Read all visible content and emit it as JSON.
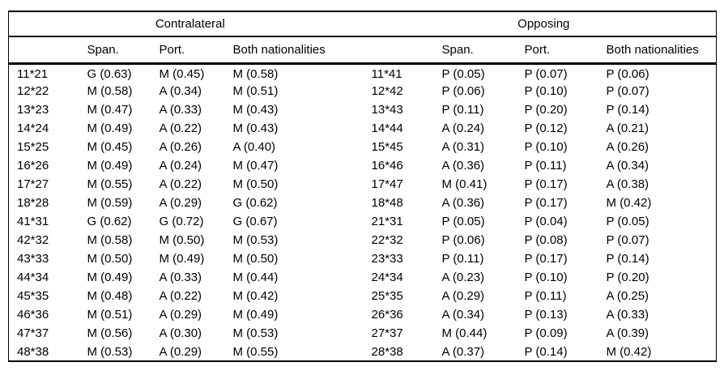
{
  "table": {
    "groups": [
      {
        "label": "Contralateral"
      },
      {
        "label": "Opposing"
      }
    ],
    "col_headers": [
      "",
      "Span.",
      "Port.",
      "Both nationalities",
      "",
      "Span.",
      "Port.",
      "Both nationalities"
    ],
    "rows": [
      [
        "11*21",
        "G (0.63)",
        "M (0.45)",
        "M (0.58)",
        "11*41",
        "P (0.05)",
        "P (0.07)",
        "P (0.06)"
      ],
      [
        "12*22",
        "M (0.58)",
        "A (0.34)",
        "M (0.51)",
        "12*42",
        "P (0.06)",
        "P (0.10)",
        "P (0.07)"
      ],
      [
        "13*23",
        "M (0.47)",
        "A (0.33)",
        "M (0.43)",
        "13*43",
        "P (0.11)",
        "P (0.20)",
        "P (0.14)"
      ],
      [
        "14*24",
        "M (0.49)",
        "A (0.22)",
        "M (0.43)",
        "14*44",
        "A (0.24)",
        "P (0.12)",
        "A (0.21)"
      ],
      [
        "15*25",
        "M (0.45)",
        "A (0.26)",
        "A (0.40)",
        "15*45",
        "A (0.31)",
        "P (0.10)",
        "A (0.26)"
      ],
      [
        "16*26",
        "M (0.49)",
        "A (0.24)",
        "M (0.47)",
        "16*46",
        "A (0.36)",
        "P (0.11)",
        "A (0.34)"
      ],
      [
        "17*27",
        "M (0.55)",
        "A (0.22)",
        "M (0.50)",
        "17*47",
        "M (0.41)",
        "P (0.17)",
        "A (0.38)"
      ],
      [
        "18*28",
        "M (0.59)",
        "A (0.29)",
        "G (0.62)",
        "18*48",
        "A (0.36)",
        "P (0.17)",
        "M (0.42)"
      ],
      [
        "41*31",
        "G (0.62)",
        "G (0.72)",
        "G (0.67)",
        "21*31",
        "P (0.05)",
        "P (0.04)",
        "P (0.05)"
      ],
      [
        "42*32",
        "M (0.58)",
        "M (0.50)",
        "M (0.53)",
        "22*32",
        "P (0.06)",
        "P (0.08)",
        "P (0.07)"
      ],
      [
        "43*33",
        "M (0.50)",
        "M (0.49)",
        "M (0.50)",
        "23*33",
        "P (0.11)",
        "P (0.17)",
        "P (0.14)"
      ],
      [
        "44*34",
        "M (0.49)",
        "A (0.33)",
        "M (0.44)",
        "24*34",
        "A (0.23)",
        "P (0.10)",
        "P (0.20)"
      ],
      [
        "45*35",
        "M (0.48)",
        "A (0.22)",
        "M (0.42)",
        "25*35",
        "A (0.29)",
        "P (0.11)",
        "A (0.25)"
      ],
      [
        "46*36",
        "M (0.51)",
        "A (0.29)",
        "M (0.49)",
        "26*36",
        "A (0.34)",
        "P (0.13)",
        "A (0.33)"
      ],
      [
        "47*37",
        "M (0.56)",
        "A (0.30)",
        "M (0.53)",
        "27*37",
        "M (0.44)",
        "P (0.09)",
        "A (0.39)"
      ],
      [
        "48*38",
        "M (0.53)",
        "A (0.29)",
        "M (0.55)",
        "28*38",
        "A (0.37)",
        "P (0.14)",
        "M (0.42)"
      ]
    ],
    "colors": {
      "text": "#000000",
      "background": "#ffffff",
      "rule": "#000000"
    }
  }
}
